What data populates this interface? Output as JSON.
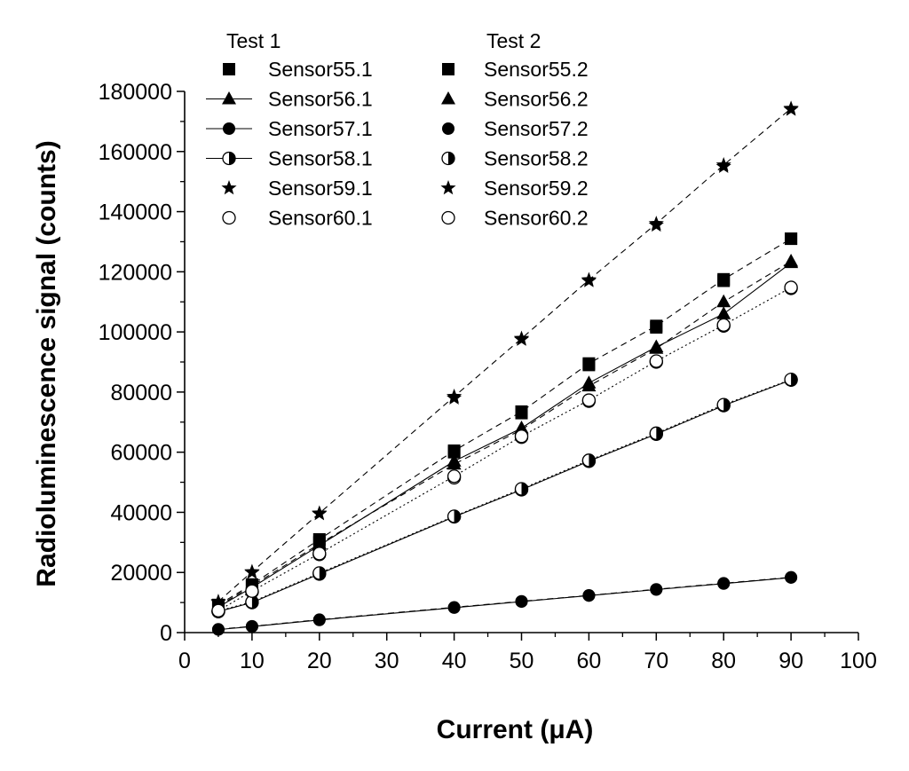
{
  "chart_data": {
    "type": "scatter",
    "xlabel": "Current (μA)",
    "ylabel": "Radioluminescence signal (counts)",
    "xlim": [
      0,
      100
    ],
    "ylim": [
      0,
      180000
    ],
    "x_ticks": [
      0,
      10,
      20,
      30,
      40,
      50,
      60,
      70,
      80,
      90,
      100
    ],
    "y_ticks": [
      0,
      20000,
      40000,
      60000,
      80000,
      100000,
      120000,
      140000,
      160000,
      180000
    ],
    "grid": false,
    "legend_placement": "top-left",
    "legend_groups": [
      "Test 1",
      "Test 2"
    ],
    "x": [
      5,
      10,
      20,
      40,
      50,
      60,
      70,
      80,
      90
    ],
    "series": [
      {
        "name": "Sensor55.1",
        "group": "Test 1",
        "marker": "square",
        "line": false,
        "values": [
          9000,
          15500,
          30000,
          60000,
          73000,
          89000,
          101500,
          117000,
          131000
        ]
      },
      {
        "name": "Sensor56.1",
        "group": "Test 1",
        "marker": "triangle",
        "line": true,
        "dash": "solid",
        "values": [
          8500,
          15000,
          29000,
          57000,
          68000,
          83000,
          95000,
          106000,
          123000
        ]
      },
      {
        "name": "Sensor57.1",
        "group": "Test 1",
        "marker": "circle",
        "line": true,
        "dash": "solid",
        "values": [
          1000,
          2000,
          4200,
          8300,
          10300,
          12300,
          14300,
          16300,
          18300
        ]
      },
      {
        "name": "Sensor58.1",
        "group": "Test 1",
        "marker": "half-circle",
        "line": true,
        "dash": "solid",
        "values": [
          7000,
          10000,
          19500,
          38500,
          47500,
          57000,
          66000,
          75500,
          84000
        ]
      },
      {
        "name": "Sensor59.1",
        "group": "Test 1",
        "marker": "star",
        "line": false,
        "values": [
          10000,
          20000,
          39500,
          78000,
          97500,
          117000,
          135500,
          155000,
          174000
        ]
      },
      {
        "name": "Sensor60.1",
        "group": "Test 1",
        "marker": "open-circle",
        "line": false,
        "values": [
          7000,
          13500,
          26000,
          51500,
          65000,
          77000,
          90000,
          102000,
          114500
        ]
      },
      {
        "name": "Sensor55.2",
        "group": "Test 2",
        "marker": "square",
        "line": true,
        "dash": "dashed",
        "values": [
          9200,
          16000,
          31000,
          60500,
          73500,
          89500,
          102000,
          117500,
          131000
        ]
      },
      {
        "name": "Sensor56.2",
        "group": "Test 2",
        "marker": "triangle",
        "line": true,
        "dash": "dashed",
        "values": [
          8800,
          15500,
          29500,
          56000,
          67500,
          82000,
          94500,
          110000,
          123500
        ]
      },
      {
        "name": "Sensor57.2",
        "group": "Test 2",
        "marker": "circle",
        "line": true,
        "dash": "dashed",
        "values": [
          1100,
          2100,
          4300,
          8400,
          10400,
          12400,
          14400,
          16400,
          18400
        ]
      },
      {
        "name": "Sensor58.2",
        "group": "Test 2",
        "marker": "half-circle",
        "line": true,
        "dash": "dotted",
        "values": [
          7200,
          10200,
          19800,
          38700,
          47800,
          57300,
          66300,
          75800,
          84200
        ]
      },
      {
        "name": "Sensor59.2",
        "group": "Test 2",
        "marker": "star",
        "line": true,
        "dash": "dashed",
        "values": [
          10300,
          20200,
          39700,
          78500,
          97800,
          117300,
          136000,
          155500,
          174300
        ]
      },
      {
        "name": "Sensor60.2",
        "group": "Test 2",
        "marker": "open-circle",
        "line": true,
        "dash": "dotted",
        "values": [
          7300,
          13800,
          26300,
          52000,
          65300,
          77300,
          90300,
          102300,
          114800
        ]
      }
    ]
  }
}
